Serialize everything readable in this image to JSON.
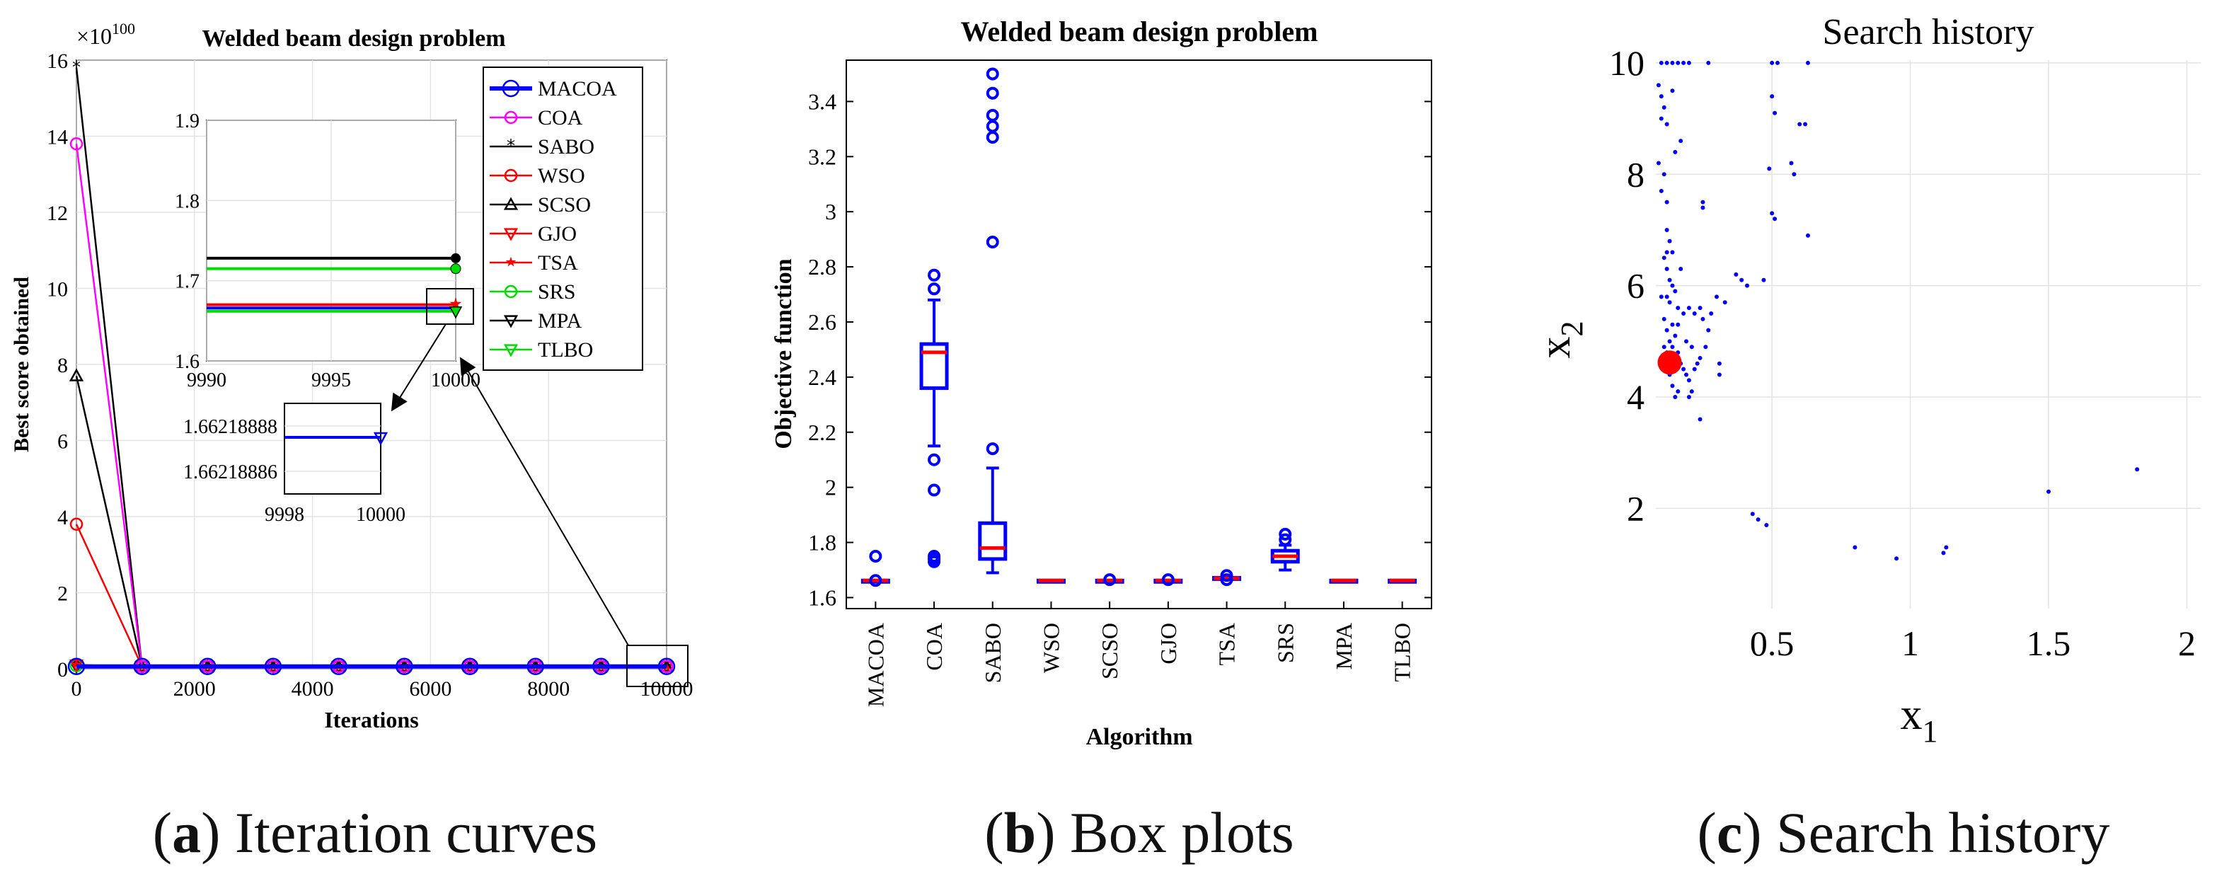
{
  "panel_a": {
    "caption_letter": "a",
    "caption_text": "Iteration curves",
    "chart_data": {
      "type": "line",
      "title": "Welded beam design problem",
      "xlabel": "Iterations",
      "ylabel": "Best score obtained",
      "exponent_label": "×10",
      "exponent_power": "100",
      "xlim": [
        0,
        10000
      ],
      "ylim": [
        0,
        16
      ],
      "xticks": [
        "0",
        "2000",
        "4000",
        "6000",
        "8000",
        "10000"
      ],
      "yticks": [
        "0",
        "2",
        "4",
        "6",
        "8",
        "10",
        "12",
        "14",
        "16"
      ],
      "x": [
        0,
        1111,
        2222,
        3333,
        4444,
        5556,
        6667,
        7778,
        8889,
        10000
      ],
      "series": [
        {
          "name": "MACOA",
          "color": "#0000ff",
          "marker": "circle",
          "values": [
            0.06,
            0.06,
            0.06,
            0.06,
            0.06,
            0.06,
            0.06,
            0.06,
            0.06,
            0.06
          ]
        },
        {
          "name": "COA",
          "color": "#ff00ff",
          "marker": "circle",
          "values": [
            13.8,
            0.06,
            0.06,
            0.06,
            0.06,
            0.06,
            0.06,
            0.06,
            0.06,
            0.06
          ]
        },
        {
          "name": "SABO",
          "color": "#000000",
          "marker": "asterisk",
          "values": [
            15.8,
            0.06,
            0.06,
            0.06,
            0.06,
            0.06,
            0.06,
            0.06,
            0.06,
            0.06
          ]
        },
        {
          "name": "WSO",
          "color": "#ff0000",
          "marker": "circle",
          "values": [
            3.8,
            0.06,
            0.06,
            0.06,
            0.06,
            0.06,
            0.06,
            0.06,
            0.06,
            0.06
          ]
        },
        {
          "name": "SCSO",
          "color": "#000000",
          "marker": "triangle-up",
          "values": [
            7.7,
            0.06,
            0.06,
            0.06,
            0.06,
            0.06,
            0.06,
            0.06,
            0.06,
            0.06
          ]
        },
        {
          "name": "GJO",
          "color": "#ff0000",
          "marker": "triangle-down",
          "values": [
            0.1,
            0.06,
            0.06,
            0.06,
            0.06,
            0.06,
            0.06,
            0.06,
            0.06,
            0.06
          ]
        },
        {
          "name": "TSA",
          "color": "#ff0000",
          "marker": "star",
          "values": [
            0.1,
            0.06,
            0.06,
            0.06,
            0.06,
            0.06,
            0.06,
            0.06,
            0.06,
            0.06
          ]
        },
        {
          "name": "SRS",
          "color": "#00dd00",
          "marker": "circle",
          "values": [
            0.08,
            0.06,
            0.06,
            0.06,
            0.06,
            0.06,
            0.06,
            0.06,
            0.06,
            0.06
          ]
        },
        {
          "name": "MPA",
          "color": "#000000",
          "marker": "triangle-down",
          "values": [
            0.06,
            0.06,
            0.06,
            0.06,
            0.06,
            0.06,
            0.06,
            0.06,
            0.06,
            0.06
          ]
        },
        {
          "name": "TLBO",
          "color": "#00dd00",
          "marker": "triangle-down",
          "values": [
            0.06,
            0.06,
            0.06,
            0.06,
            0.06,
            0.06,
            0.06,
            0.06,
            0.06,
            0.06
          ]
        }
      ],
      "inset1": {
        "xlim": [
          9990,
          10000
        ],
        "ylim": [
          1.6,
          1.9
        ],
        "xticks": [
          "9990",
          "9995",
          "10000"
        ],
        "yticks": [
          "1.6",
          "1.7",
          "1.8",
          "1.9"
        ],
        "lines": [
          {
            "value": 1.728,
            "color": "#000000"
          },
          {
            "value": 1.715,
            "color": "#00dd00"
          },
          {
            "value": 1.67,
            "color": "#ff0000"
          },
          {
            "value": 1.666,
            "color": "#0000ff"
          },
          {
            "value": 1.662,
            "color": "#00dd00"
          }
        ]
      },
      "inset2": {
        "xlim": [
          9998,
          10000
        ],
        "ylim": [
          1.66218885,
          1.66218889
        ],
        "xticks": [
          "9998",
          "10000"
        ],
        "yticks": [
          "1.66218886",
          "1.66218888"
        ],
        "value": 1.662188875
      }
    }
  },
  "panel_b": {
    "caption_letter": "b",
    "caption_text": "Box plots",
    "chart_data": {
      "type": "box",
      "title": "Welded beam design problem",
      "xlabel": "Algorithm",
      "ylabel": "Objective function",
      "ylim": [
        1.56,
        3.55
      ],
      "yticks": [
        "1.6",
        "1.8",
        "2",
        "2.2",
        "2.4",
        "2.6",
        "2.8",
        "3",
        "3.2",
        "3.4"
      ],
      "categories": [
        "MACOA",
        "COA",
        "SABO",
        "WSO",
        "SCSO",
        "GJO",
        "TSA",
        "SRS",
        "MPA",
        "TLBO"
      ],
      "boxes": [
        {
          "min": 1.662,
          "q1": 1.662,
          "median": 1.662,
          "q3": 1.662,
          "max": 1.662,
          "outliers": [
            1.75,
            1.662
          ]
        },
        {
          "min": 2.15,
          "q1": 2.36,
          "median": 2.49,
          "q3": 2.52,
          "max": 2.68,
          "outliers": [
            2.77,
            2.72,
            2.1,
            1.99,
            1.75,
            1.74,
            1.73
          ]
        },
        {
          "min": 1.69,
          "q1": 1.74,
          "median": 1.78,
          "q3": 1.87,
          "max": 2.07,
          "outliers": [
            3.5,
            3.43,
            3.35,
            3.31,
            3.27,
            2.89,
            2.14
          ]
        },
        {
          "min": 1.662,
          "q1": 1.662,
          "median": 1.662,
          "q3": 1.662,
          "max": 1.662,
          "outliers": []
        },
        {
          "min": 1.662,
          "q1": 1.662,
          "median": 1.662,
          "q3": 1.662,
          "max": 1.662,
          "outliers": [
            1.665
          ]
        },
        {
          "min": 1.662,
          "q1": 1.662,
          "median": 1.662,
          "q3": 1.662,
          "max": 1.662,
          "outliers": [
            1.665
          ]
        },
        {
          "min": 1.665,
          "q1": 1.667,
          "median": 1.67,
          "q3": 1.672,
          "max": 1.675,
          "outliers": [
            1.68,
            1.665
          ]
        },
        {
          "min": 1.7,
          "q1": 1.73,
          "median": 1.75,
          "q3": 1.77,
          "max": 1.79,
          "outliers": [
            1.83,
            1.81
          ]
        },
        {
          "min": 1.662,
          "q1": 1.662,
          "median": 1.662,
          "q3": 1.662,
          "max": 1.662,
          "outliers": []
        },
        {
          "min": 1.662,
          "q1": 1.662,
          "median": 1.662,
          "q3": 1.662,
          "max": 1.662,
          "outliers": []
        }
      ]
    }
  },
  "panel_c": {
    "caption_letter": "c",
    "caption_text": "Search history",
    "chart_data": {
      "type": "scatter",
      "title": "Search history",
      "xlabel": "x",
      "xlabel_sub": "1",
      "ylabel": "x",
      "ylabel_sub": "2",
      "xlim": [
        0.08,
        2.05
      ],
      "ylim": [
        0.2,
        10.05
      ],
      "xticks": [
        "0.5",
        "1",
        "1.5",
        "2"
      ],
      "yticks": [
        "2",
        "4",
        "6",
        "8",
        "10"
      ],
      "best_point": {
        "x": 0.13,
        "y": 4.62,
        "color": "#ff0000"
      },
      "points": [
        [
          0.1,
          10.0
        ],
        [
          0.12,
          10.0
        ],
        [
          0.14,
          10.0
        ],
        [
          0.16,
          10.0
        ],
        [
          0.18,
          10.0
        ],
        [
          0.2,
          10.0
        ],
        [
          0.27,
          10.0
        ],
        [
          0.5,
          10.0
        ],
        [
          0.52,
          10.0
        ],
        [
          0.63,
          10.0
        ],
        [
          0.09,
          9.6
        ],
        [
          0.1,
          9.4
        ],
        [
          0.11,
          9.2
        ],
        [
          0.1,
          9.0
        ],
        [
          0.12,
          8.9
        ],
        [
          0.14,
          9.5
        ],
        [
          0.09,
          8.2
        ],
        [
          0.11,
          8.0
        ],
        [
          0.1,
          7.7
        ],
        [
          0.12,
          7.5
        ],
        [
          0.15,
          8.4
        ],
        [
          0.17,
          8.6
        ],
        [
          0.5,
          9.4
        ],
        [
          0.51,
          9.1
        ],
        [
          0.6,
          8.9
        ],
        [
          0.62,
          8.9
        ],
        [
          0.57,
          8.2
        ],
        [
          0.58,
          8.0
        ],
        [
          0.49,
          8.1
        ],
        [
          0.25,
          7.5
        ],
        [
          0.25,
          7.4
        ],
        [
          0.5,
          7.3
        ],
        [
          0.51,
          7.2
        ],
        [
          0.63,
          6.9
        ],
        [
          0.12,
          7.0
        ],
        [
          0.13,
          6.8
        ],
        [
          0.14,
          6.6
        ],
        [
          0.11,
          6.5
        ],
        [
          0.12,
          6.3
        ],
        [
          0.13,
          6.1
        ],
        [
          0.14,
          6.0
        ],
        [
          0.15,
          5.9
        ],
        [
          0.12,
          5.8
        ],
        [
          0.13,
          5.7
        ],
        [
          0.16,
          5.6
        ],
        [
          0.18,
          5.5
        ],
        [
          0.2,
          5.6
        ],
        [
          0.22,
          5.5
        ],
        [
          0.24,
          5.6
        ],
        [
          0.25,
          5.4
        ],
        [
          0.27,
          5.2
        ],
        [
          0.3,
          5.8
        ],
        [
          0.33,
          5.7
        ],
        [
          0.37,
          6.2
        ],
        [
          0.39,
          6.1
        ],
        [
          0.41,
          6.0
        ],
        [
          0.47,
          6.1
        ],
        [
          0.11,
          5.4
        ],
        [
          0.12,
          5.2
        ],
        [
          0.13,
          5.0
        ],
        [
          0.14,
          4.9
        ],
        [
          0.15,
          5.1
        ],
        [
          0.16,
          4.8
        ],
        [
          0.17,
          4.6
        ],
        [
          0.18,
          4.5
        ],
        [
          0.19,
          4.4
        ],
        [
          0.2,
          4.3
        ],
        [
          0.21,
          4.1
        ],
        [
          0.22,
          4.5
        ],
        [
          0.24,
          4.7
        ],
        [
          0.31,
          4.6
        ],
        [
          0.31,
          4.4
        ],
        [
          0.14,
          4.2
        ],
        [
          0.15,
          4.0
        ],
        [
          0.16,
          4.1
        ],
        [
          0.2,
          4.0
        ],
        [
          0.24,
          3.6
        ],
        [
          0.13,
          4.4
        ],
        [
          0.12,
          4.8
        ],
        [
          0.11,
          4.9
        ],
        [
          0.14,
          5.3
        ],
        [
          0.16,
          5.3
        ],
        [
          0.19,
          5.0
        ],
        [
          0.21,
          4.9
        ],
        [
          0.23,
          4.6
        ],
        [
          0.26,
          4.9
        ],
        [
          0.17,
          6.3
        ],
        [
          0.12,
          6.6
        ],
        [
          0.1,
          5.8
        ],
        [
          0.28,
          5.5
        ],
        [
          0.43,
          1.9
        ],
        [
          0.45,
          1.8
        ],
        [
          0.48,
          1.7
        ],
        [
          0.8,
          1.3
        ],
        [
          0.95,
          1.1
        ],
        [
          1.12,
          1.2
        ],
        [
          1.13,
          1.3
        ],
        [
          1.5,
          2.3
        ],
        [
          1.82,
          2.7
        ]
      ]
    }
  }
}
